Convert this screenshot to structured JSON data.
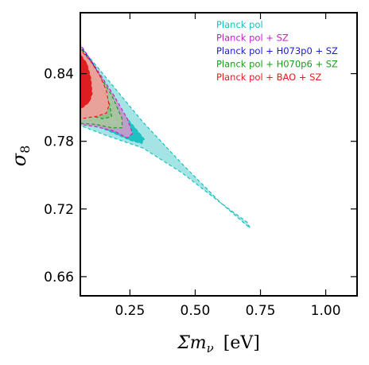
{
  "chart_data": {
    "type": "contour",
    "xlabel": "Σm_ν [eV]",
    "xlabel_parts": {
      "main": "Σm",
      "sub": "ν",
      "unit": "[eV]"
    },
    "ylabel": "σ_8",
    "ylabel_parts": {
      "main": "σ",
      "sub": "8"
    },
    "xlim": [
      0.06,
      1.12
    ],
    "ylim": [
      0.643,
      0.894
    ],
    "xticks": [
      0.25,
      0.5,
      0.75,
      1.0
    ],
    "xtick_labels": [
      "0.25",
      "0.50",
      "0.75",
      "1.00"
    ],
    "yticks": [
      0.66,
      0.72,
      0.78,
      0.84
    ],
    "ytick_labels": [
      "0.66",
      "0.72",
      "0.78",
      "0.84"
    ],
    "grid": false,
    "legend_position": "top-right",
    "series": [
      {
        "name": "Planck pol",
        "color": "#17bfbf",
        "fill_68": "#17bfbf",
        "fill_95": "#9de2e2",
        "contour_95": [
          [
            0.06,
            0.794
          ],
          [
            0.06,
            0.864
          ],
          [
            0.15,
            0.839
          ],
          [
            0.3,
            0.797
          ],
          [
            0.45,
            0.76
          ],
          [
            0.6,
            0.725
          ],
          [
            0.69,
            0.707
          ],
          [
            0.71,
            0.703
          ],
          [
            0.7,
            0.708
          ],
          [
            0.6,
            0.725
          ],
          [
            0.45,
            0.752
          ],
          [
            0.3,
            0.774
          ],
          [
            0.15,
            0.786
          ],
          [
            0.06,
            0.794
          ]
        ],
        "contour_68": [
          [
            0.06,
            0.8
          ],
          [
            0.06,
            0.851
          ],
          [
            0.14,
            0.831
          ],
          [
            0.23,
            0.803
          ],
          [
            0.28,
            0.789
          ],
          [
            0.305,
            0.782
          ],
          [
            0.295,
            0.778
          ],
          [
            0.25,
            0.781
          ],
          [
            0.15,
            0.791
          ],
          [
            0.06,
            0.8
          ]
        ]
      },
      {
        "name": "Planck pol + SZ",
        "color": "#c71fc7",
        "fill_68": "#d2a5d0",
        "fill_95": "#cb9acb",
        "contour_95": [
          [
            0.06,
            0.795
          ],
          [
            0.06,
            0.866
          ],
          [
            0.12,
            0.845
          ],
          [
            0.19,
            0.82
          ],
          [
            0.24,
            0.8
          ],
          [
            0.26,
            0.787
          ],
          [
            0.24,
            0.783
          ],
          [
            0.19,
            0.789
          ],
          [
            0.12,
            0.793
          ],
          [
            0.06,
            0.795
          ]
        ],
        "contour_68": [
          [
            0.06,
            0.802
          ],
          [
            0.06,
            0.856
          ],
          [
            0.12,
            0.835
          ],
          [
            0.17,
            0.815
          ],
          [
            0.2,
            0.8
          ],
          [
            0.2,
            0.792
          ],
          [
            0.17,
            0.796
          ],
          [
            0.12,
            0.8
          ],
          [
            0.06,
            0.802
          ]
        ]
      },
      {
        "name": "Planck pol + H073p0 + SZ",
        "color": "#1a1adb",
        "fill_68": "#a7a7b5",
        "fill_95": "#bcbcc8",
        "contour_95": [
          [
            0.06,
            0.798
          ],
          [
            0.06,
            0.864
          ],
          [
            0.11,
            0.848
          ],
          [
            0.15,
            0.831
          ],
          [
            0.18,
            0.816
          ],
          [
            0.185,
            0.805
          ],
          [
            0.16,
            0.8
          ],
          [
            0.12,
            0.799
          ],
          [
            0.06,
            0.798
          ]
        ],
        "contour_68": [
          [
            0.06,
            0.808
          ],
          [
            0.06,
            0.852
          ],
          [
            0.1,
            0.84
          ],
          [
            0.13,
            0.826
          ],
          [
            0.14,
            0.814
          ],
          [
            0.12,
            0.809
          ],
          [
            0.06,
            0.808
          ]
        ]
      },
      {
        "name": "Planck pol + H070p6 + SZ",
        "color": "#1a9e1a",
        "fill_68": "#8cc08c",
        "fill_95": "#a6c8a0",
        "contour_95": [
          [
            0.06,
            0.796
          ],
          [
            0.06,
            0.863
          ],
          [
            0.12,
            0.843
          ],
          [
            0.18,
            0.821
          ],
          [
            0.22,
            0.8
          ],
          [
            0.22,
            0.792
          ],
          [
            0.18,
            0.792
          ],
          [
            0.12,
            0.795
          ],
          [
            0.06,
            0.796
          ]
        ],
        "contour_68": [
          [
            0.06,
            0.804
          ],
          [
            0.06,
            0.852
          ],
          [
            0.12,
            0.835
          ],
          [
            0.17,
            0.815
          ],
          [
            0.18,
            0.802
          ],
          [
            0.15,
            0.8
          ],
          [
            0.06,
            0.804
          ]
        ]
      },
      {
        "name": "Planck pol + BAO + SZ",
        "color": "#e81a1a",
        "fill_68": "#dd1717",
        "fill_95": "#f0a09a",
        "contour_95": [
          [
            0.06,
            0.8
          ],
          [
            0.06,
            0.861
          ],
          [
            0.1,
            0.851
          ],
          [
            0.135,
            0.838
          ],
          [
            0.16,
            0.825
          ],
          [
            0.17,
            0.812
          ],
          [
            0.16,
            0.805
          ],
          [
            0.12,
            0.802
          ],
          [
            0.06,
            0.8
          ]
        ],
        "contour_68": [
          [
            0.06,
            0.809
          ],
          [
            0.06,
            0.857
          ],
          [
            0.085,
            0.849
          ],
          [
            0.1,
            0.836
          ],
          [
            0.105,
            0.822
          ],
          [
            0.095,
            0.815
          ],
          [
            0.075,
            0.811
          ],
          [
            0.06,
            0.809
          ]
        ]
      }
    ]
  }
}
